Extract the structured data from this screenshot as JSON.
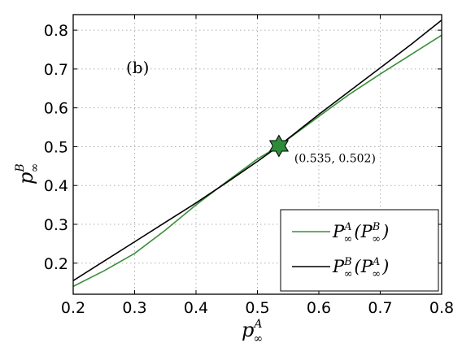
{
  "chart_data": {
    "type": "line",
    "panel_label": "(b)",
    "xlabel": {
      "base": "p",
      "sup": "A",
      "sub": "∞"
    },
    "ylabel": {
      "base": "p",
      "sup": "B",
      "sub": "∞"
    },
    "xlim": [
      0.2,
      0.8
    ],
    "ylim": [
      0.12,
      0.84
    ],
    "x_ticks": [
      "0.2",
      "0.3",
      "0.4",
      "0.5",
      "0.6",
      "0.7",
      "0.8"
    ],
    "y_ticks": [
      "0.2",
      "0.3",
      "0.4",
      "0.5",
      "0.6",
      "0.7",
      "0.8"
    ],
    "grid": true,
    "legend_position": "bottom-right",
    "series": [
      {
        "name": "P∞A(P∞B)",
        "legend": {
          "a": "P",
          "a_sup": "A",
          "a_sub": "∞",
          "b": "P",
          "b_sup": "B",
          "b_sub": "∞"
        },
        "color": "#3a8f3a",
        "x": [
          0.2,
          0.25,
          0.3,
          0.35,
          0.4,
          0.45,
          0.5,
          0.535,
          0.6,
          0.65,
          0.7,
          0.75,
          0.8
        ],
        "y": [
          0.14,
          0.18,
          0.225,
          0.285,
          0.35,
          0.41,
          0.468,
          0.502,
          0.578,
          0.635,
          0.687,
          0.737,
          0.787
        ]
      },
      {
        "name": "P∞B(P∞A)",
        "legend": {
          "a": "P",
          "a_sup": "B",
          "a_sub": "∞",
          "b": "P",
          "b_sup": "A",
          "b_sub": "∞"
        },
        "color": "#000000",
        "x": [
          0.2,
          0.25,
          0.3,
          0.35,
          0.4,
          0.45,
          0.5,
          0.535,
          0.6,
          0.65,
          0.7,
          0.75,
          0.8
        ],
        "y": [
          0.155,
          0.205,
          0.255,
          0.305,
          0.355,
          0.408,
          0.462,
          0.502,
          0.583,
          0.643,
          0.703,
          0.763,
          0.826
        ]
      }
    ],
    "marker": {
      "x": 0.535,
      "y": 0.502,
      "label": "(0.535, 0.502)",
      "shape": "hexagram",
      "color": "#2e8b3a"
    }
  }
}
